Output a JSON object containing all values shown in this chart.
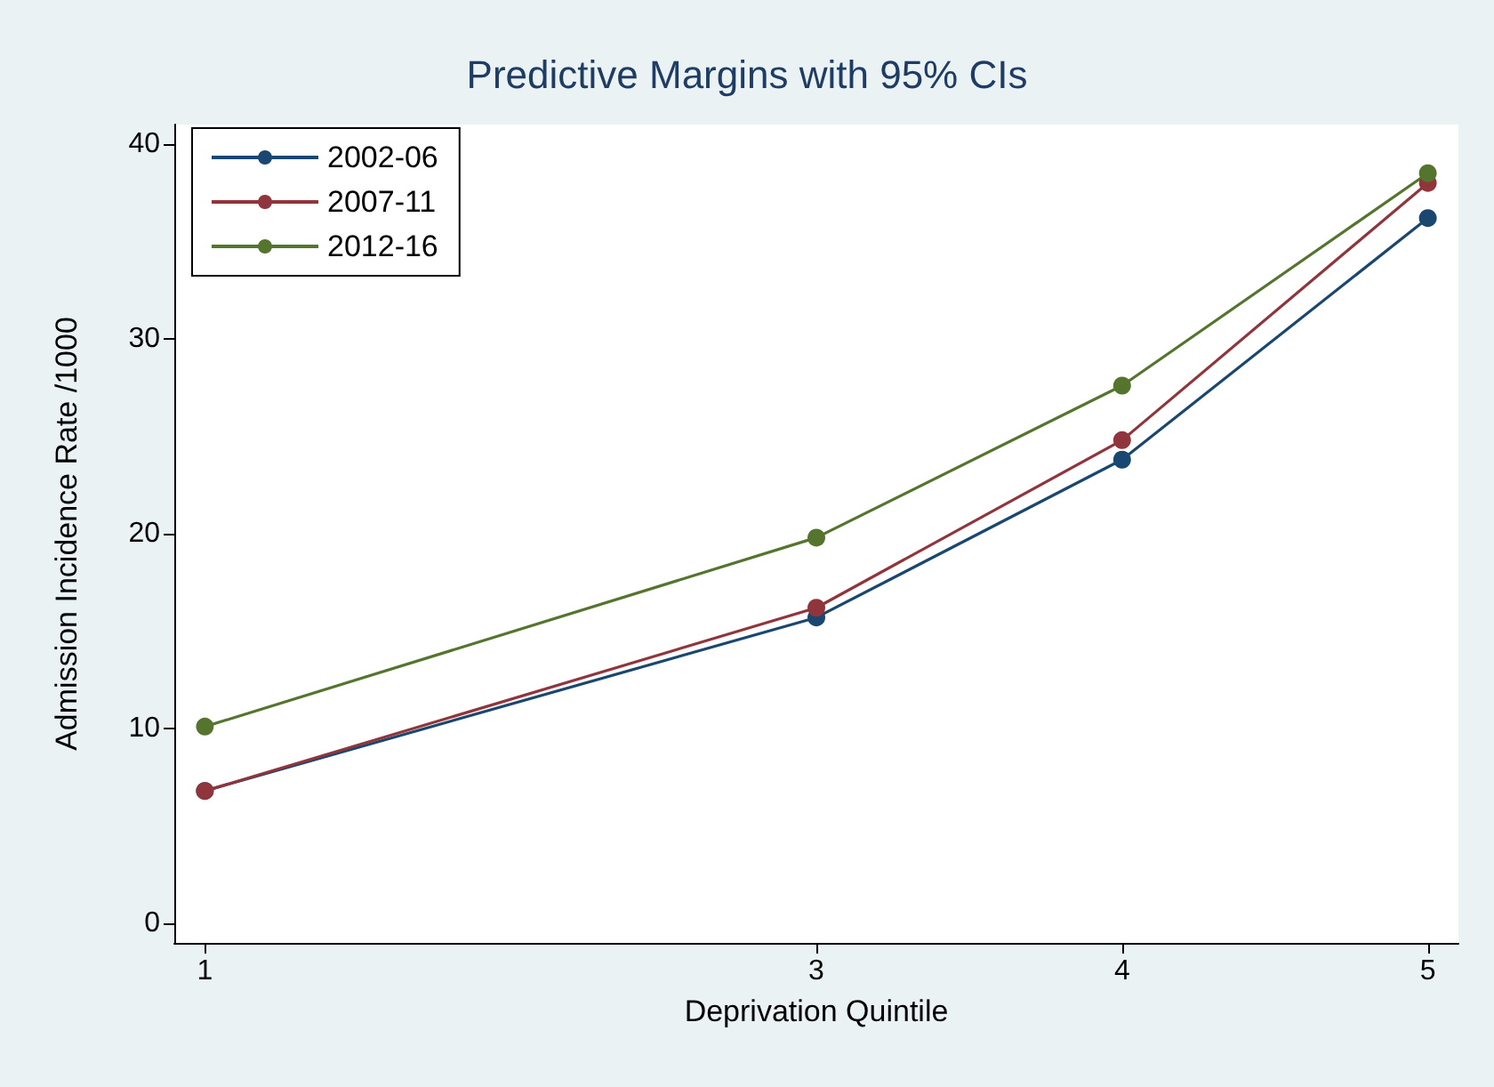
{
  "chart_data": {
    "type": "line",
    "title": "Predictive Margins with 95% CIs",
    "xlabel": "Deprivation Quintile",
    "ylabel": "Admission Incidence Rate /1000",
    "x": [
      1,
      3,
      4,
      5
    ],
    "series": [
      {
        "name": "2002-06",
        "color": "#1a476f",
        "values": [
          6.8,
          15.7,
          23.8,
          36.2
        ]
      },
      {
        "name": "2007-11",
        "color": "#90353b",
        "values": [
          6.8,
          16.2,
          24.8,
          38.0
        ]
      },
      {
        "name": "2012-16",
        "color": "#55752f",
        "values": [
          10.1,
          19.8,
          27.6,
          38.5
        ]
      }
    ],
    "xlim": [
      0.9,
      5.1
    ],
    "xticks": [
      1,
      3,
      4,
      5
    ],
    "ylim": [
      -1,
      41
    ],
    "yticks": [
      0,
      10,
      20,
      30,
      40
    ],
    "grid": false,
    "legend": "top left",
    "marker": "circle",
    "line_style": "solid"
  }
}
